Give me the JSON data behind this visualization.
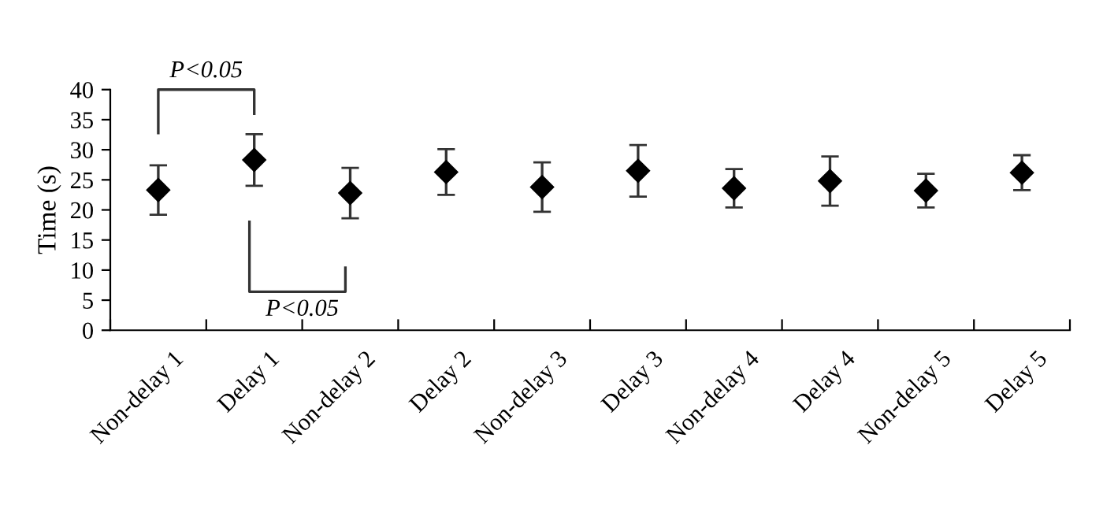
{
  "chart_data": {
    "type": "scatter",
    "ylabel": "Time (s)",
    "categories": [
      "Non-delay 1",
      "Delay 1",
      "Non-delay 2",
      "Delay 2",
      "Non-delay 3",
      "Delay 3",
      "Non-delay 4",
      "Delay 4",
      "Non-delay 5",
      "Delay 5"
    ],
    "series": [
      {
        "color": "#000000",
        "values": [
          23.3,
          28.3,
          22.8,
          26.3,
          23.8,
          26.5,
          23.6,
          24.8,
          23.2,
          26.2
        ],
        "errors": [
          4.1,
          4.3,
          4.2,
          3.8,
          4.1,
          4.3,
          3.2,
          4.1,
          2.8,
          2.9
        ]
      }
    ],
    "marker": "diamond",
    "ylim": [
      0,
      40
    ],
    "yticks": [
      0,
      5,
      10,
      15,
      20,
      25,
      30,
      35,
      40
    ],
    "grid": false,
    "legend": false,
    "annotations": [
      "P<0.05",
      "P<0.05"
    ]
  }
}
